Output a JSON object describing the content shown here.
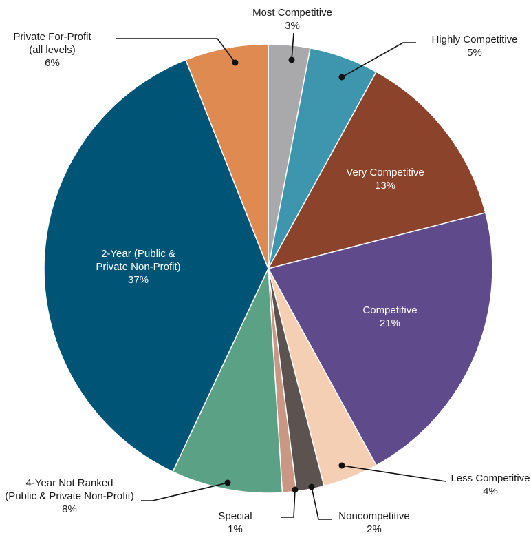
{
  "chart_data": {
    "type": "pie",
    "title": "",
    "unit": "%",
    "slices": [
      {
        "label": [
          "Most Competitive"
        ],
        "value": 3,
        "value_text": "3%",
        "color": "#a9a9ab",
        "label_style": "outside"
      },
      {
        "label": [
          "Highly Competitive"
        ],
        "value": 5,
        "value_text": "5%",
        "color": "#3d96ae",
        "label_style": "outside"
      },
      {
        "label": [
          "Very Competitive"
        ],
        "value": 13,
        "value_text": "13%",
        "color": "#8b432b",
        "label_style": "inside"
      },
      {
        "label": [
          "Competitive"
        ],
        "value": 21,
        "value_text": "21%",
        "color": "#5f4b8b",
        "label_style": "inside"
      },
      {
        "label": [
          "Less Competitive"
        ],
        "value": 4,
        "value_text": "4%",
        "color": "#f5cfb4",
        "label_style": "outside"
      },
      {
        "label": [
          "Noncompetitive"
        ],
        "value": 2,
        "value_text": "2%",
        "color": "#5c5250",
        "label_style": "outside"
      },
      {
        "label": [
          "Special"
        ],
        "value": 1,
        "value_text": "1%",
        "color": "#c99784",
        "label_style": "outside"
      },
      {
        "label": [
          "4-Year Not Ranked",
          "(Public & Private Non-Profit)"
        ],
        "value": 8,
        "value_text": "8%",
        "color": "#5aa186",
        "label_style": "outside"
      },
      {
        "label": [
          "2-Year (Public &",
          "Private Non-Profit)"
        ],
        "value": 37,
        "value_text": "37%",
        "color": "#005577",
        "label_style": "inside"
      },
      {
        "label": [
          "Private For-Profit",
          "(all levels)"
        ],
        "value": 6,
        "value_text": "6%",
        "color": "#df8a50",
        "label_style": "outside"
      }
    ]
  }
}
